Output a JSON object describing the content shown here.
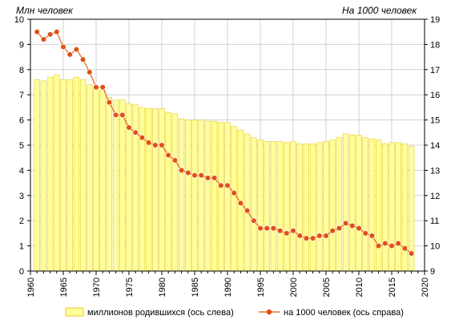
{
  "chart_data": {
    "type": "bar+line",
    "left_axis_title": "Млн  человек",
    "right_axis_title": "На 1000 человек",
    "x_ticks": [
      1960,
      1965,
      1970,
      1975,
      1980,
      1985,
      1990,
      1995,
      2000,
      2005,
      2010,
      2015,
      2020
    ],
    "xlim": [
      1960,
      2020
    ],
    "ylim_left": [
      0,
      10
    ],
    "ylim_right": [
      9,
      19
    ],
    "y_ticks_left": [
      0,
      1,
      2,
      3,
      4,
      5,
      6,
      7,
      8,
      9,
      10
    ],
    "y_ticks_right": [
      9,
      10,
      11,
      12,
      13,
      14,
      15,
      16,
      17,
      18,
      19
    ],
    "grid": true,
    "legend_position": "bottom",
    "colors": {
      "bars_fill": "#ffff99",
      "bars_stroke": "#e6c830",
      "line": "#e86c2c",
      "marker": "#e05010",
      "grid": "#d0d0d0",
      "axis": "#000000"
    },
    "years": [
      1961,
      1962,
      1963,
      1964,
      1965,
      1966,
      1967,
      1968,
      1969,
      1970,
      1971,
      1972,
      1973,
      1974,
      1975,
      1976,
      1977,
      1978,
      1979,
      1980,
      1981,
      1982,
      1983,
      1984,
      1985,
      1986,
      1987,
      1988,
      1989,
      1990,
      1991,
      1992,
      1993,
      1994,
      1995,
      1996,
      1997,
      1998,
      1999,
      2000,
      2001,
      2002,
      2003,
      2004,
      2005,
      2006,
      2007,
      2008,
      2009,
      2010,
      2011,
      2012,
      2013,
      2014,
      2015,
      2016,
      2017,
      2018
    ],
    "series": [
      {
        "name": "миллионов  родившихся (ось слева)",
        "type": "bar",
        "axis": "left",
        "values": [
          7.6,
          7.55,
          7.7,
          7.8,
          7.6,
          7.6,
          7.7,
          7.6,
          7.4,
          7.3,
          7.2,
          6.9,
          6.8,
          6.8,
          6.65,
          6.6,
          6.5,
          6.45,
          6.45,
          6.45,
          6.3,
          6.25,
          6.05,
          6.0,
          6.0,
          6.0,
          5.95,
          5.95,
          5.9,
          5.9,
          5.75,
          5.6,
          5.45,
          5.3,
          5.2,
          5.15,
          5.15,
          5.15,
          5.1,
          5.15,
          5.05,
          5.05,
          5.05,
          5.1,
          5.15,
          5.2,
          5.3,
          5.45,
          5.4,
          5.4,
          5.3,
          5.25,
          5.2,
          5.05,
          5.1,
          5.1,
          5.05,
          4.95
        ]
      },
      {
        "name": "на 1000 человек (ось справа)",
        "type": "line",
        "axis": "right",
        "values": [
          18.5,
          18.2,
          18.4,
          18.5,
          17.9,
          17.6,
          17.8,
          17.4,
          16.9,
          16.3,
          16.3,
          15.7,
          15.2,
          15.2,
          14.7,
          14.5,
          14.3,
          14.1,
          14.0,
          14.0,
          13.6,
          13.4,
          13.0,
          12.9,
          12.8,
          12.8,
          12.7,
          12.7,
          12.4,
          12.4,
          12.1,
          11.7,
          11.4,
          11.0,
          10.7,
          10.7,
          10.7,
          10.6,
          10.5,
          10.6,
          10.4,
          10.3,
          10.3,
          10.4,
          10.4,
          10.6,
          10.7,
          10.9,
          10.8,
          10.7,
          10.5,
          10.4,
          10.0,
          10.1,
          10.0,
          10.1,
          9.9,
          9.7
        ]
      }
    ]
  }
}
